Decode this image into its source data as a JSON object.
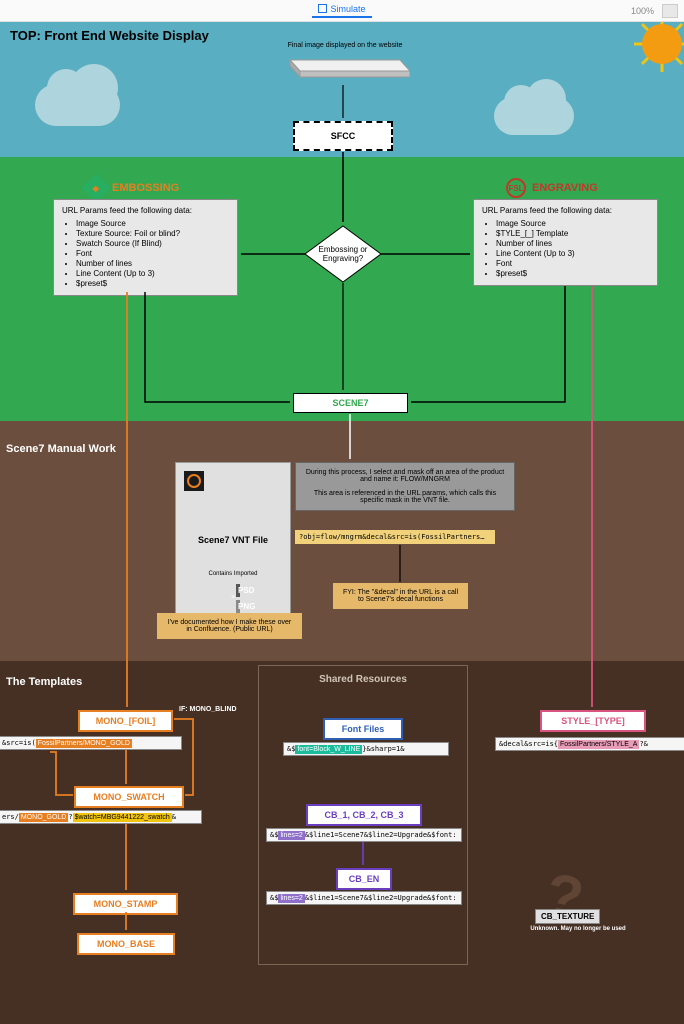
{
  "toolbar": {
    "simulate": "Simulate",
    "zoom": "100%"
  },
  "title": "TOP: Front End Website Display",
  "platform_caption": "Final image displayed on the website",
  "sfcc": "SFCC",
  "categories": {
    "embossing": "EMBOSSING",
    "engraving": "ENGRAVING"
  },
  "url_boxes": {
    "header": "URL Params feed the following data:",
    "emb_items": [
      "Image Source",
      "Texture Source: Foil or blind?",
      "Swatch Source (If Blind)",
      "Font",
      "Number of lines",
      "Line Content (Up to 3)",
      "$preset$"
    ],
    "eng_items": [
      "Image Source",
      "$TYLE_[_] Template",
      "Number of lines",
      "Line Content (Up to 3)",
      "Font",
      "$preset$"
    ]
  },
  "decision": "Embossing or\nEngraving?",
  "scene7": "SCENE7",
  "sec_brown1_title": "Scene7 Manual Work",
  "vnt": {
    "title": "Scene7 VNT File",
    "contains": "Contains Imported",
    "psd": "PSD",
    "png": "PNG"
  },
  "confluence_note": "I've documented how I make these over in Confluence. (Public URL)",
  "grey_note": "During this process, I select and mask off an area of the product and name it: FLOW/MNGRM\n\nThis area is referenced in the URL params, which calls this specific mask in the VNT file.",
  "param_example": "?obj=flow/mngrm&decal&src=is(FossilPartners…",
  "fyi_note": "FYI: The \"&decal\" in the URL is a call to Scene7's decal functions",
  "sec_brown2_title": "The Templates",
  "shared_title": "Shared Resources",
  "templates": {
    "mono_foil": "MONO_[FOIL]",
    "if_blind": "IF: MONO_BLIND",
    "mono_swatch": "MONO_SWATCH",
    "mono_stamp": "MONO_STAMP",
    "mono_base": "MONO_BASE",
    "font_files": "Font Files",
    "cb_123": "CB_1, CB_2, CB_3",
    "cb_en": "CB_EN",
    "style_type": "STYLE_[TYPE]"
  },
  "codebars": {
    "foil": "&src=is(FossilPartners/MONO_GOLD",
    "foil_hl": "FossilPartners/MONO_GOLD",
    "swatch": "ers/MONO_GOLD?$watch=MBG9441222_swatch&",
    "swatch_hl1": "MONO_GOLD",
    "swatch_hl2": "$watch=MBG9441222_swatch",
    "font": "&$font=Block_W_LINE}&sharp=1&",
    "font_hl": "font=Block_W_LINE",
    "cb": "&$lines=2&$line1=Scene7&$line2=Upgrade&$font:",
    "cb_hl": "lines=2",
    "style": "&decal&src=is{FossilPartners/STYLE_A?&",
    "style_hl": "FossilPartners/STYLE_A"
  },
  "cb_texture": "CB_TEXTURE",
  "cb_texture_sub": "Unknown. May no longer be used",
  "colors": {
    "sky": "#5aaec2",
    "green": "#32a850",
    "brown1": "#6b4e3d",
    "brown2": "#463024",
    "orange": "#e67e22",
    "red": "#c0392b",
    "pink": "#d8547e",
    "blue": "#2e5fb3",
    "purple": "#6a3fbf"
  }
}
